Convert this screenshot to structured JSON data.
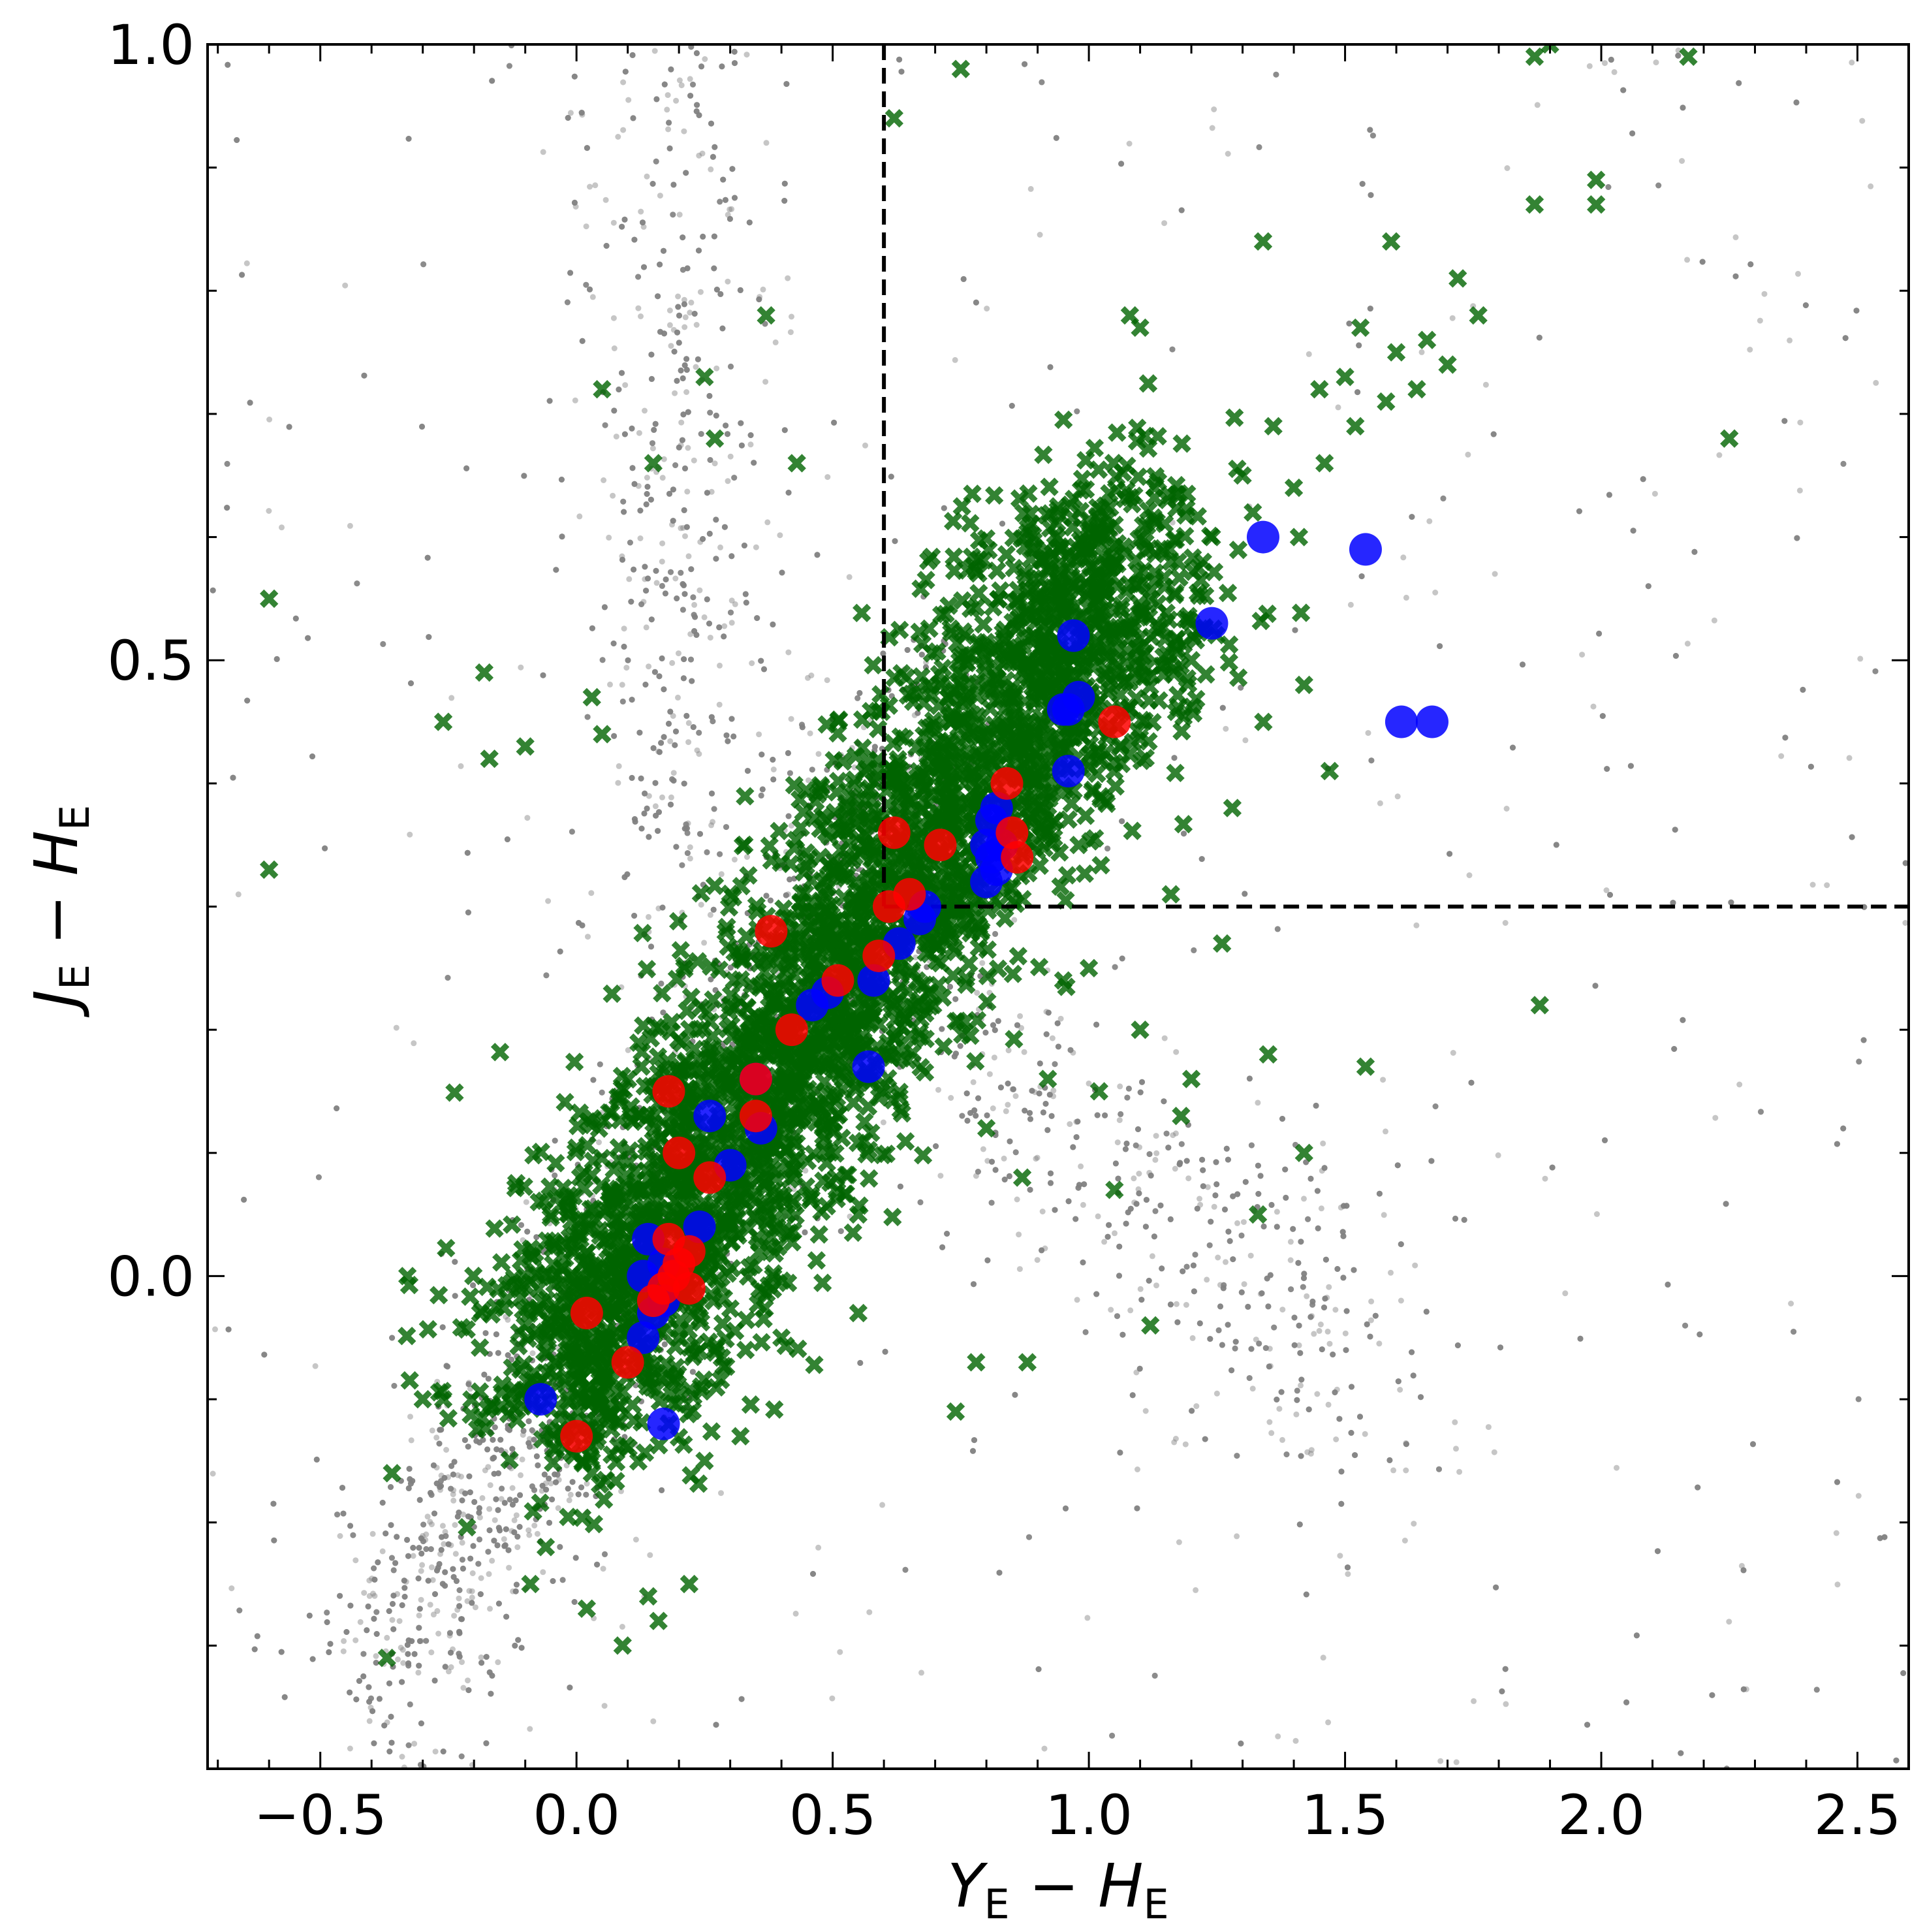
{
  "chart_data": {
    "type": "scatter",
    "title": "",
    "xlabel": {
      "main": "Y",
      "sub1": "E",
      "sep": " − ",
      "main2": "H",
      "sub2": "E"
    },
    "ylabel": {
      "main": "J",
      "sub1": "E",
      "sep": " − ",
      "main2": "H",
      "sub2": "E"
    },
    "xlim": [
      -0.72,
      2.6
    ],
    "ylim": [
      -0.4,
      1.0
    ],
    "xticks": [
      -0.5,
      0.0,
      0.5,
      1.0,
      1.5,
      2.0,
      2.5
    ],
    "xtick_labels": [
      "−0.5",
      "0.0",
      "0.5",
      "1.0",
      "1.5",
      "2.0",
      "2.5"
    ],
    "yticks": [
      0.0,
      0.5,
      1.0
    ],
    "ytick_labels": [
      "0.0",
      "0.5",
      "1.0"
    ],
    "grid": false,
    "selection_lines": {
      "x": 0.6,
      "y": 0.3
    },
    "colors": {
      "background": "#808080",
      "cross": "#006400",
      "blue": "#0000ff",
      "red": "#ff0000"
    },
    "background_population": {
      "description_count": 9000,
      "branches": [
        {
          "from": [
            -0.4,
            -0.35
          ],
          "to": [
            0.7,
            0.45
          ],
          "weight": 0.5
        },
        {
          "from": [
            0.2,
            0.3
          ],
          "to": [
            0.2,
            0.98
          ],
          "weight": 0.15
        },
        {
          "from": [
            0.7,
            0.2
          ],
          "to": [
            1.6,
            -0.1
          ],
          "weight": 0.15
        }
      ]
    },
    "series": [
      {
        "marker": "x",
        "color": "#006400",
        "points": [
          [
            -0.6,
            0.55
          ],
          [
            -0.6,
            0.33
          ],
          [
            0.05,
            0.72
          ],
          [
            0.62,
            0.94
          ],
          [
            0.75,
            0.98
          ],
          [
            1.9,
            1.0
          ],
          [
            1.87,
            0.99
          ],
          [
            2.17,
            0.99
          ],
          [
            1.99,
            0.89
          ],
          [
            1.99,
            0.87
          ],
          [
            1.87,
            0.87
          ],
          [
            1.34,
            0.84
          ],
          [
            1.59,
            0.84
          ],
          [
            0.37,
            0.78
          ],
          [
            0.25,
            0.73
          ],
          [
            0.27,
            0.68
          ],
          [
            0.43,
            0.66
          ],
          [
            0.03,
            0.47
          ],
          [
            -0.26,
            0.45
          ],
          [
            -0.1,
            0.43
          ],
          [
            -0.17,
            0.42
          ],
          [
            0.15,
            0.66
          ],
          [
            -0.18,
            0.49
          ],
          [
            0.05,
            0.44
          ],
          [
            0.94,
            0.56
          ],
          [
            1.41,
            0.6
          ],
          [
            1.5,
            0.73
          ],
          [
            1.53,
            0.77
          ],
          [
            1.7,
            0.74
          ],
          [
            1.76,
            0.78
          ],
          [
            1.72,
            0.81
          ],
          [
            2.25,
            0.68
          ],
          [
            1.47,
            0.41
          ],
          [
            1.42,
            0.48
          ],
          [
            1.16,
            0.31
          ],
          [
            1.26,
            0.27
          ],
          [
            1.88,
            0.22
          ],
          [
            1.35,
            0.18
          ],
          [
            1.54,
            0.17
          ],
          [
            1.05,
            0.07
          ],
          [
            1.2,
            0.16
          ],
          [
            1.18,
            0.13
          ],
          [
            0.98,
            0.35
          ],
          [
            1.1,
            0.2
          ],
          [
            1.12,
            -0.04
          ],
          [
            0.71,
            0.48
          ],
          [
            0.3,
            0.22
          ],
          [
            0.34,
            0.19
          ],
          [
            -0.33,
            0.0
          ],
          [
            -0.3,
            -0.1
          ],
          [
            -0.26,
            -0.1
          ],
          [
            -0.36,
            -0.16
          ],
          [
            -0.37,
            -0.31
          ],
          [
            -0.06,
            -0.22
          ],
          [
            -0.09,
            -0.25
          ],
          [
            0.03,
            -0.15
          ],
          [
            0.02,
            -0.27
          ],
          [
            0.16,
            -0.28
          ],
          [
            0.09,
            -0.3
          ],
          [
            0.14,
            -0.26
          ],
          [
            0.22,
            -0.25
          ],
          [
            0.03,
            -0.16
          ],
          [
            0.18,
            -0.12
          ],
          [
            0.25,
            -0.15
          ],
          [
            0.32,
            -0.13
          ],
          [
            0.33,
            -0.06
          ],
          [
            0.4,
            -0.05
          ],
          [
            0.55,
            -0.03
          ],
          [
            0.74,
            -0.11
          ],
          [
            0.78,
            -0.07
          ],
          [
            0.88,
            -0.07
          ],
          [
            0.55,
            0.05
          ],
          [
            0.87,
            0.08
          ],
          [
            0.92,
            0.16
          ],
          [
            0.95,
            0.24
          ],
          [
            1.0,
            0.25
          ],
          [
            0.8,
            0.12
          ],
          [
            1.02,
            0.15
          ],
          [
            1.33,
            0.05
          ],
          [
            1.42,
            0.1
          ],
          [
            1.28,
            0.38
          ],
          [
            1.2,
            0.5
          ],
          [
            1.12,
            0.55
          ],
          [
            1.16,
            0.58
          ],
          [
            1.24,
            0.6
          ],
          [
            1.32,
            0.62
          ],
          [
            1.4,
            0.64
          ],
          [
            1.46,
            0.66
          ],
          [
            1.52,
            0.69
          ],
          [
            1.58,
            0.71
          ],
          [
            1.64,
            0.72
          ],
          [
            1.6,
            0.75
          ],
          [
            1.66,
            0.76
          ],
          [
            1.1,
            0.77
          ],
          [
            1.08,
            0.78
          ],
          [
            1.3,
            0.65
          ],
          [
            1.36,
            0.69
          ],
          [
            1.45,
            0.72
          ]
        ],
        "dense_cloud": {
          "center_line": {
            "from": [
              -0.05,
              -0.1
            ],
            "to": [
              1.1,
              0.6
            ]
          },
          "count": 3500
        }
      },
      {
        "marker": "o",
        "color": "#0000ff",
        "points": [
          [
            1.34,
            0.6
          ],
          [
            1.54,
            0.59
          ],
          [
            1.24,
            0.53
          ],
          [
            0.97,
            0.52
          ],
          [
            0.98,
            0.47
          ],
          [
            0.95,
            0.46
          ],
          [
            0.96,
            0.46
          ],
          [
            1.61,
            0.45
          ],
          [
            1.67,
            0.45
          ],
          [
            0.96,
            0.41
          ],
          [
            0.82,
            0.38
          ],
          [
            0.81,
            0.37
          ],
          [
            0.8,
            0.35
          ],
          [
            0.81,
            0.34
          ],
          [
            0.83,
            0.35
          ],
          [
            0.8,
            0.32
          ],
          [
            0.82,
            0.33
          ],
          [
            0.68,
            0.3
          ],
          [
            0.67,
            0.29
          ],
          [
            0.63,
            0.27
          ],
          [
            0.58,
            0.24
          ],
          [
            0.49,
            0.23
          ],
          [
            0.46,
            0.22
          ],
          [
            0.57,
            0.17
          ],
          [
            0.35,
            0.16
          ],
          [
            0.36,
            0.12
          ],
          [
            0.26,
            0.13
          ],
          [
            0.3,
            0.09
          ],
          [
            0.24,
            0.04
          ],
          [
            0.14,
            0.03
          ],
          [
            0.17,
            0.01
          ],
          [
            0.13,
            0.0
          ],
          [
            0.15,
            -0.03
          ],
          [
            0.13,
            -0.05
          ],
          [
            0.17,
            -0.02
          ],
          [
            -0.07,
            -0.1
          ],
          [
            0.17,
            -0.12
          ]
        ]
      },
      {
        "marker": "o",
        "color": "#ff0000",
        "points": [
          [
            1.05,
            0.45
          ],
          [
            0.84,
            0.4
          ],
          [
            0.85,
            0.36
          ],
          [
            0.86,
            0.34
          ],
          [
            0.62,
            0.36
          ],
          [
            0.71,
            0.35
          ],
          [
            0.65,
            0.31
          ],
          [
            0.61,
            0.3
          ],
          [
            0.38,
            0.28
          ],
          [
            0.59,
            0.26
          ],
          [
            0.51,
            0.24
          ],
          [
            0.42,
            0.2
          ],
          [
            0.35,
            0.16
          ],
          [
            0.18,
            0.15
          ],
          [
            0.35,
            0.13
          ],
          [
            0.2,
            0.1
          ],
          [
            0.26,
            0.08
          ],
          [
            0.18,
            0.03
          ],
          [
            0.22,
            0.02
          ],
          [
            0.2,
            0.01
          ],
          [
            0.19,
            0.0
          ],
          [
            0.17,
            -0.01
          ],
          [
            0.22,
            -0.01
          ],
          [
            0.15,
            -0.02
          ],
          [
            0.02,
            -0.03
          ],
          [
            0.1,
            -0.07
          ],
          [
            0.0,
            -0.13
          ]
        ]
      }
    ]
  }
}
